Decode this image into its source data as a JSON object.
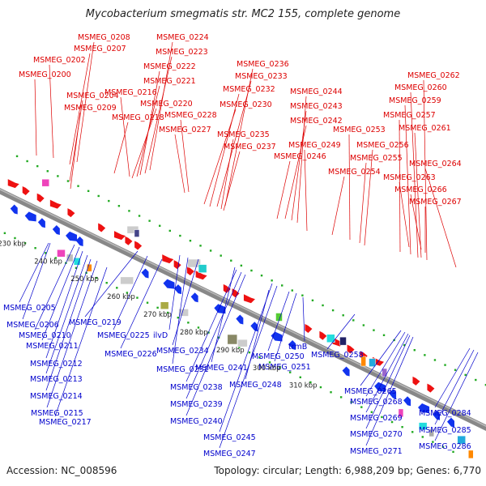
{
  "title": "Mycobacterium smegmatis str. MC2 155, complete genome",
  "footer": {
    "accession": "Accession: NC_008596",
    "summary": "Topology: circular; Length: 6,988,209 bp; Genes: 6,770"
  },
  "colors": {
    "forward_gene": "#ee1111",
    "reverse_gene": "#1133ee",
    "forward_label": "#dd0000",
    "reverse_label": "#0000cc",
    "backbone": "#888888",
    "tick": "#22aa22"
  },
  "scale": [
    "230 kbp",
    "240 kbp",
    "250 kbp",
    "260 kbp",
    "270 kbp",
    "280 kbp",
    "290 kbp",
    "300 kbp",
    "310 kbp"
  ],
  "top_labels": [
    "MSMEG_0208",
    "MSMEG_0207",
    "MSMEG_0202",
    "MSMEG_0200",
    "MSMEG_0204",
    "MSMEG_0209",
    "MSMEG_0224",
    "MSMEG_0223",
    "MSMEG_0222",
    "MSMEG_0221",
    "MSMEG_0216",
    "MSMEG_0220",
    "MSMEG_0218",
    "MSMEG_0228",
    "MSMEG_0227",
    "MSMEG_0236",
    "MSMEG_0233",
    "MSMEG_0232",
    "MSMEG_0230",
    "MSMEG_0235",
    "MSMEG_0237",
    "MSMEG_0244",
    "MSMEG_0243",
    "MSMEG_0242",
    "MSMEG_0249",
    "MSMEG_0246",
    "MSMEG_0253",
    "MSMEG_0256",
    "MSMEG_0255",
    "MSMEG_0254",
    "MSMEG_0262",
    "MSMEG_0260",
    "MSMEG_0259",
    "MSMEG_0257",
    "MSMEG_0261",
    "MSMEG_0264",
    "MSMEG_0263",
    "MSMEG_0266",
    "MSMEG_0267"
  ],
  "bottom_labels": [
    "MSMEG_0205",
    "MSMEG_0206",
    "MSMEG_0210",
    "MSMEG_0211",
    "MSMEG_0212",
    "MSMEG_0213",
    "MSMEG_0214",
    "MSMEG_0215",
    "MSMEG_0217",
    "MSMEG_0219",
    "MSMEG_0225",
    "ilvD",
    "MSMEG_0226",
    "MSMEG_0234",
    "MSMEG_0231",
    "MSMEG_0241",
    "MSMEG_0238",
    "MSMEG_0239",
    "MSMEG_0240",
    "MSMEG_0245",
    "MSMEG_0247",
    "MSMEG_0248",
    "MSMEG_0250",
    "trmB",
    "MSMEG_0251",
    "MSMEG_0258",
    "MSMEG_0265",
    "MSMEG_0268",
    "MSMEG_0269",
    "MSMEG_0270",
    "MSMEG_0271",
    "MSMEG_0284",
    "MSMEG_0285",
    "MSMEG_0286"
  ]
}
